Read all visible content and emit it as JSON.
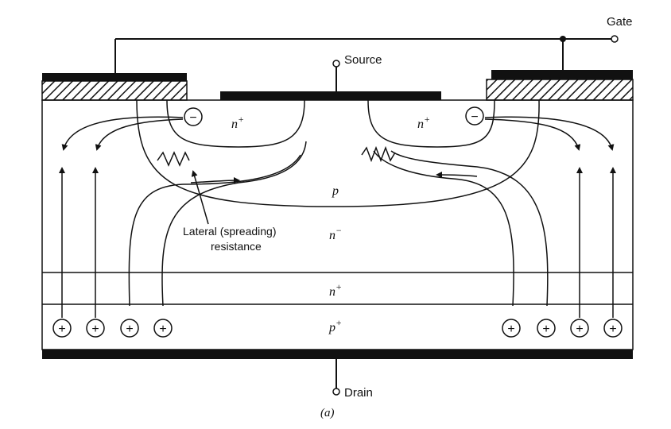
{
  "terminals": {
    "gate": "Gate",
    "source": "Source",
    "drain": "Drain"
  },
  "regions": {
    "n_plus_left": "n",
    "n_plus_right": "n",
    "n_plus_super": "+",
    "p_body": "p",
    "n_minus": "n",
    "n_minus_super": "−",
    "n_plus_buffer": "n",
    "n_plus_buffer_super": "+",
    "p_plus": "p",
    "p_plus_super": "+"
  },
  "annotation": {
    "line1": "Lateral (spreading)",
    "line2": "resistance"
  },
  "carriers": {
    "electron_symbol": "−",
    "hole_symbol": "+"
  },
  "caption": "(a)"
}
